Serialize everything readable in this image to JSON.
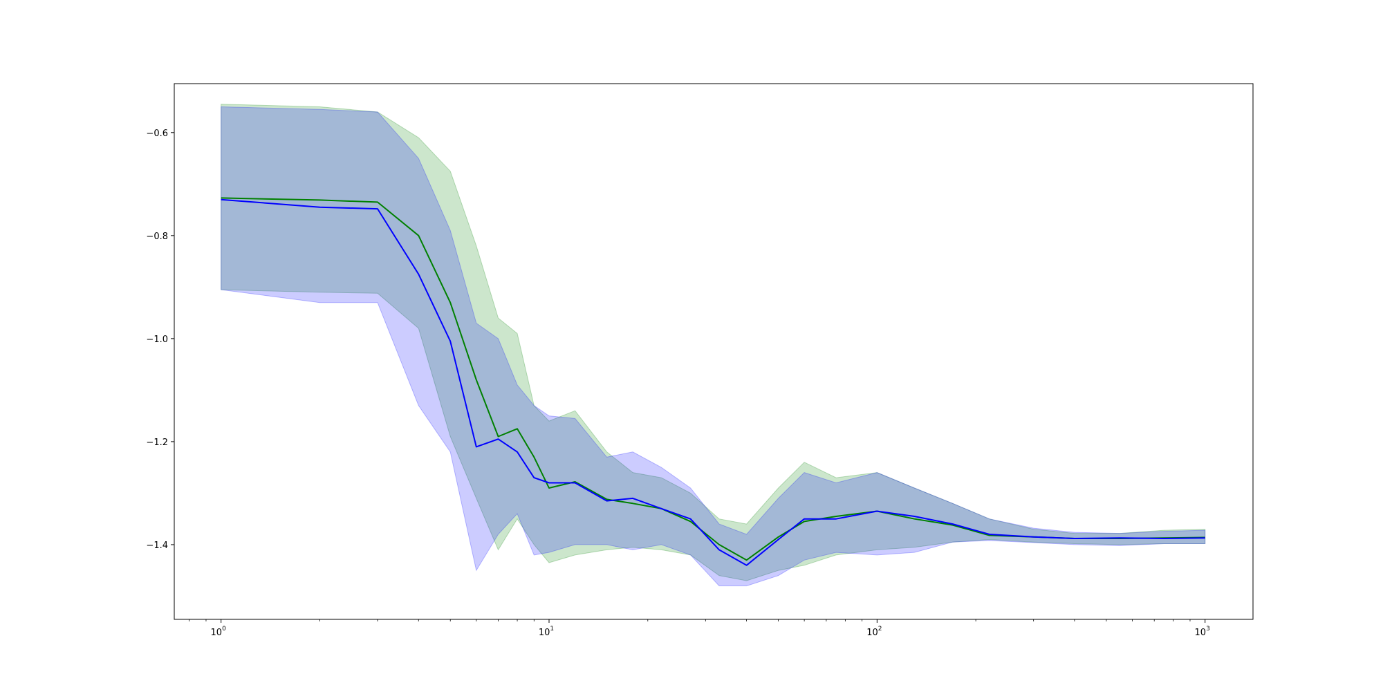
{
  "chart_data": {
    "type": "line",
    "xscale": "log",
    "xlim": [
      0.72,
      1400
    ],
    "ylim": [
      -1.545,
      -0.505
    ],
    "grid": false,
    "legend": "none",
    "title": "",
    "xlabel": "",
    "ylabel": "",
    "x_ticks": [
      {
        "value": 1,
        "base": "10",
        "exp": "0"
      },
      {
        "value": 10,
        "base": "10",
        "exp": "1"
      },
      {
        "value": 100,
        "base": "10",
        "exp": "2"
      },
      {
        "value": 1000,
        "base": "10",
        "exp": "3"
      }
    ],
    "y_ticks": [
      {
        "value": -0.6,
        "label": "−0.6"
      },
      {
        "value": -0.8,
        "label": "−0.8"
      },
      {
        "value": -1.0,
        "label": "−1.0"
      },
      {
        "value": -1.2,
        "label": "−1.2"
      },
      {
        "value": -1.4,
        "label": "−1.4"
      }
    ],
    "x": [
      1,
      2,
      3,
      4,
      5,
      6,
      7,
      8,
      9,
      10,
      12,
      15,
      18,
      22,
      27,
      33,
      40,
      50,
      60,
      75,
      100,
      130,
      170,
      220,
      300,
      400,
      550,
      750,
      1000
    ],
    "series": [
      {
        "color": "#008000",
        "band_color": "#008000",
        "band_opacity": 0.2,
        "values": [
          -0.727,
          -0.731,
          -0.735,
          -0.8,
          -0.93,
          -1.08,
          -1.19,
          -1.175,
          -1.23,
          -1.29,
          -1.278,
          -1.312,
          -1.32,
          -1.33,
          -1.355,
          -1.4,
          -1.43,
          -1.385,
          -1.355,
          -1.345,
          -1.335,
          -1.35,
          -1.362,
          -1.382,
          -1.385,
          -1.388,
          -1.388,
          -1.387,
          -1.386
        ],
        "lower": [
          -0.905,
          -0.91,
          -0.912,
          -0.98,
          -1.19,
          -1.31,
          -1.41,
          -1.35,
          -1.4,
          -1.435,
          -1.42,
          -1.41,
          -1.405,
          -1.41,
          -1.42,
          -1.46,
          -1.47,
          -1.45,
          -1.44,
          -1.42,
          -1.41,
          -1.405,
          -1.395,
          -1.39,
          -1.395,
          -1.398,
          -1.4,
          -1.398,
          -1.398
        ],
        "upper": [
          -0.545,
          -0.55,
          -0.56,
          -0.61,
          -0.675,
          -0.82,
          -0.96,
          -0.99,
          -1.13,
          -1.16,
          -1.14,
          -1.22,
          -1.26,
          -1.27,
          -1.3,
          -1.35,
          -1.36,
          -1.29,
          -1.24,
          -1.27,
          -1.26,
          -1.29,
          -1.32,
          -1.35,
          -1.37,
          -1.378,
          -1.378,
          -1.372,
          -1.37
        ]
      },
      {
        "color": "#0000ff",
        "band_color": "#0000ff",
        "band_opacity": 0.2,
        "values": [
          -0.73,
          -0.745,
          -0.748,
          -0.875,
          -1.005,
          -1.21,
          -1.195,
          -1.22,
          -1.27,
          -1.28,
          -1.28,
          -1.315,
          -1.31,
          -1.33,
          -1.35,
          -1.41,
          -1.44,
          -1.39,
          -1.35,
          -1.35,
          -1.335,
          -1.345,
          -1.36,
          -1.38,
          -1.385,
          -1.388,
          -1.387,
          -1.388,
          -1.387
        ],
        "lower": [
          -0.905,
          -0.93,
          -0.93,
          -1.13,
          -1.22,
          -1.45,
          -1.38,
          -1.34,
          -1.42,
          -1.415,
          -1.4,
          -1.4,
          -1.41,
          -1.4,
          -1.42,
          -1.48,
          -1.48,
          -1.46,
          -1.43,
          -1.415,
          -1.42,
          -1.415,
          -1.395,
          -1.392,
          -1.396,
          -1.4,
          -1.402,
          -1.398,
          -1.398
        ],
        "upper": [
          -0.55,
          -0.555,
          -0.56,
          -0.65,
          -0.79,
          -0.97,
          -1.0,
          -1.09,
          -1.13,
          -1.15,
          -1.155,
          -1.23,
          -1.22,
          -1.25,
          -1.29,
          -1.36,
          -1.38,
          -1.31,
          -1.26,
          -1.28,
          -1.26,
          -1.29,
          -1.32,
          -1.35,
          -1.368,
          -1.376,
          -1.378,
          -1.374,
          -1.372
        ]
      }
    ]
  }
}
